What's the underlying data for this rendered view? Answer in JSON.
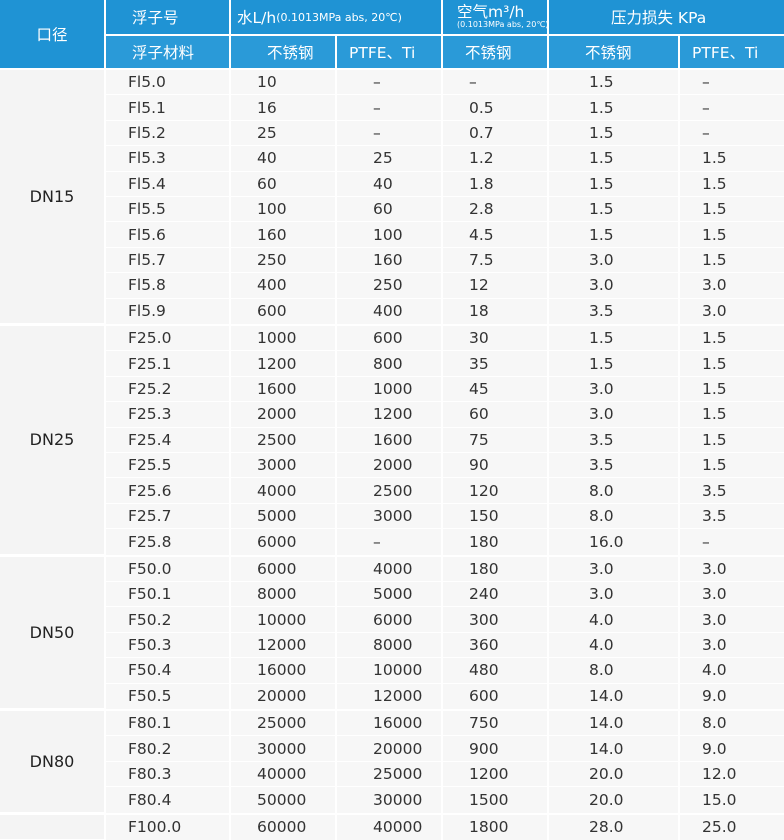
{
  "headers": {
    "diameter": "口径",
    "float_no": "浮子号",
    "water_main": "水L/h",
    "water_unit": "(0.1013MPa abs, 20℃)",
    "air_main": "空气m³/h",
    "air_unit": "(0.1013MPa abs, 20℃)",
    "pressure": "压力损失 KPa",
    "material": "浮子材料",
    "ss1": "不锈钢",
    "ptfe1": "PTFE、Ti",
    "ss2": "不锈钢",
    "ss3": "不锈钢",
    "ptfe2": "PTFE、Ti"
  },
  "groups": [
    {
      "label": "DN15",
      "rows": [
        [
          "Fl5.0",
          "10",
          "–",
          "–",
          "1.5",
          "–"
        ],
        [
          "Fl5.1",
          "16",
          "–",
          "0.5",
          "1.5",
          "–"
        ],
        [
          "Fl5.2",
          "25",
          "–",
          "0.7",
          "1.5",
          "–"
        ],
        [
          "Fl5.3",
          "40",
          "25",
          "1.2",
          "1.5",
          "1.5"
        ],
        [
          "Fl5.4",
          "60",
          "40",
          "1.8",
          "1.5",
          "1.5"
        ],
        [
          "Fl5.5",
          "100",
          "60",
          "2.8",
          "1.5",
          "1.5"
        ],
        [
          "Fl5.6",
          "160",
          "100",
          "4.5",
          "1.5",
          "1.5"
        ],
        [
          "Fl5.7",
          "250",
          "160",
          "7.5",
          "3.0",
          "1.5"
        ],
        [
          "Fl5.8",
          "400",
          "250",
          "12",
          "3.0",
          "3.0"
        ],
        [
          "Fl5.9",
          "600",
          "400",
          "18",
          "3.5",
          "3.0"
        ]
      ]
    },
    {
      "label": "DN25",
      "rows": [
        [
          "F25.0",
          "1000",
          "600",
          "30",
          "1.5",
          "1.5"
        ],
        [
          "F25.1",
          "1200",
          "800",
          "35",
          "1.5",
          "1.5"
        ],
        [
          "F25.2",
          "1600",
          "1000",
          "45",
          "3.0",
          "1.5"
        ],
        [
          "F25.3",
          "2000",
          "1200",
          "60",
          "3.0",
          "1.5"
        ],
        [
          "F25.4",
          "2500",
          "1600",
          "75",
          "3.5",
          "1.5"
        ],
        [
          "F25.5",
          "3000",
          "2000",
          "90",
          "3.5",
          "1.5"
        ],
        [
          "F25.6",
          "4000",
          "2500",
          "120",
          "8.0",
          "3.5"
        ],
        [
          "F25.7",
          "5000",
          "3000",
          "150",
          "8.0",
          "3.5"
        ],
        [
          "F25.8",
          "6000",
          "–",
          "180",
          "16.0",
          "–"
        ]
      ]
    },
    {
      "label": "DN50",
      "rows": [
        [
          "F50.0",
          "6000",
          "4000",
          "180",
          "3.0",
          "3.0"
        ],
        [
          "F50.1",
          "8000",
          "5000",
          "240",
          "3.0",
          "3.0"
        ],
        [
          "F50.2",
          "10000",
          "6000",
          "300",
          "4.0",
          "3.0"
        ],
        [
          "F50.3",
          "12000",
          "8000",
          "360",
          "4.0",
          "3.0"
        ],
        [
          "F50.4",
          "16000",
          "10000",
          "480",
          "8.0",
          "4.0"
        ],
        [
          "F50.5",
          "20000",
          "12000",
          "600",
          "14.0",
          "9.0"
        ]
      ]
    },
    {
      "label": "DN80",
      "rows": [
        [
          "F80.1",
          "25000",
          "16000",
          "750",
          "14.0",
          "8.0"
        ],
        [
          "F80.2",
          "30000",
          "20000",
          "900",
          "14.0",
          "9.0"
        ],
        [
          "F80.3",
          "40000",
          "25000",
          "1200",
          "20.0",
          "12.0"
        ],
        [
          "F80.4",
          "50000",
          "30000",
          "1500",
          "20.0",
          "15.0"
        ]
      ]
    },
    {
      "label": "",
      "rows": [
        [
          "F100.0",
          "60000",
          "40000",
          "1800",
          "28.0",
          "25.0"
        ]
      ]
    }
  ]
}
